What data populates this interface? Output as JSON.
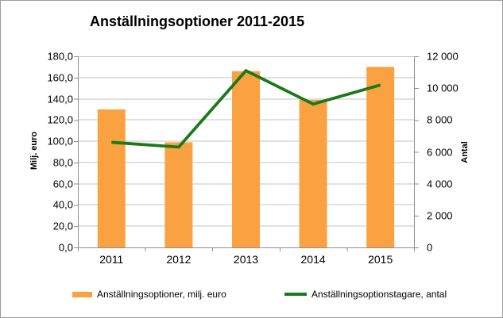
{
  "chart_data": {
    "type": "bar+line",
    "title": "Anställningsoptioner 2011-2015",
    "categories": [
      "2011",
      "2012",
      "2013",
      "2014",
      "2015"
    ],
    "series": [
      {
        "name": "Anställningsoptioner, milj. euro",
        "type": "bar",
        "axis": "left",
        "color": "#FAA142",
        "values": [
          130,
          99,
          166,
          139,
          170
        ]
      },
      {
        "name": "Anställningsoptionstagare, antal",
        "type": "line",
        "axis": "right",
        "color": "#1A7A1A",
        "values": [
          6600,
          6300,
          11100,
          9000,
          10200
        ]
      }
    ],
    "left_axis": {
      "label": "Milj. euro",
      "min": 0,
      "max": 180,
      "step": 20,
      "tick_labels": [
        "0,0",
        "20,0",
        "40,0",
        "60,0",
        "80,0",
        "100,0",
        "120,0",
        "140,0",
        "160,0",
        "180,0"
      ]
    },
    "right_axis": {
      "label": "Antal",
      "min": 0,
      "max": 12000,
      "step": 2000,
      "tick_labels": [
        "0",
        "2 000",
        "4 000",
        "6 000",
        "8 000",
        "10 000",
        "12 000"
      ]
    },
    "grid": true,
    "legend_position": "bottom"
  },
  "legend": {
    "items": [
      {
        "label": "Anställningsoptioner, milj. euro",
        "swatch": "bar",
        "color": "#FAA142"
      },
      {
        "label": "Anställningsoptionstagare, antal",
        "swatch": "line",
        "color": "#1A7A1A"
      }
    ]
  },
  "colors": {
    "gridline": "#C3C3C3",
    "axis": "#8E8E8E",
    "frame_border": "#9A9A9A",
    "background": "#FFFFFF",
    "text": "#000000"
  }
}
